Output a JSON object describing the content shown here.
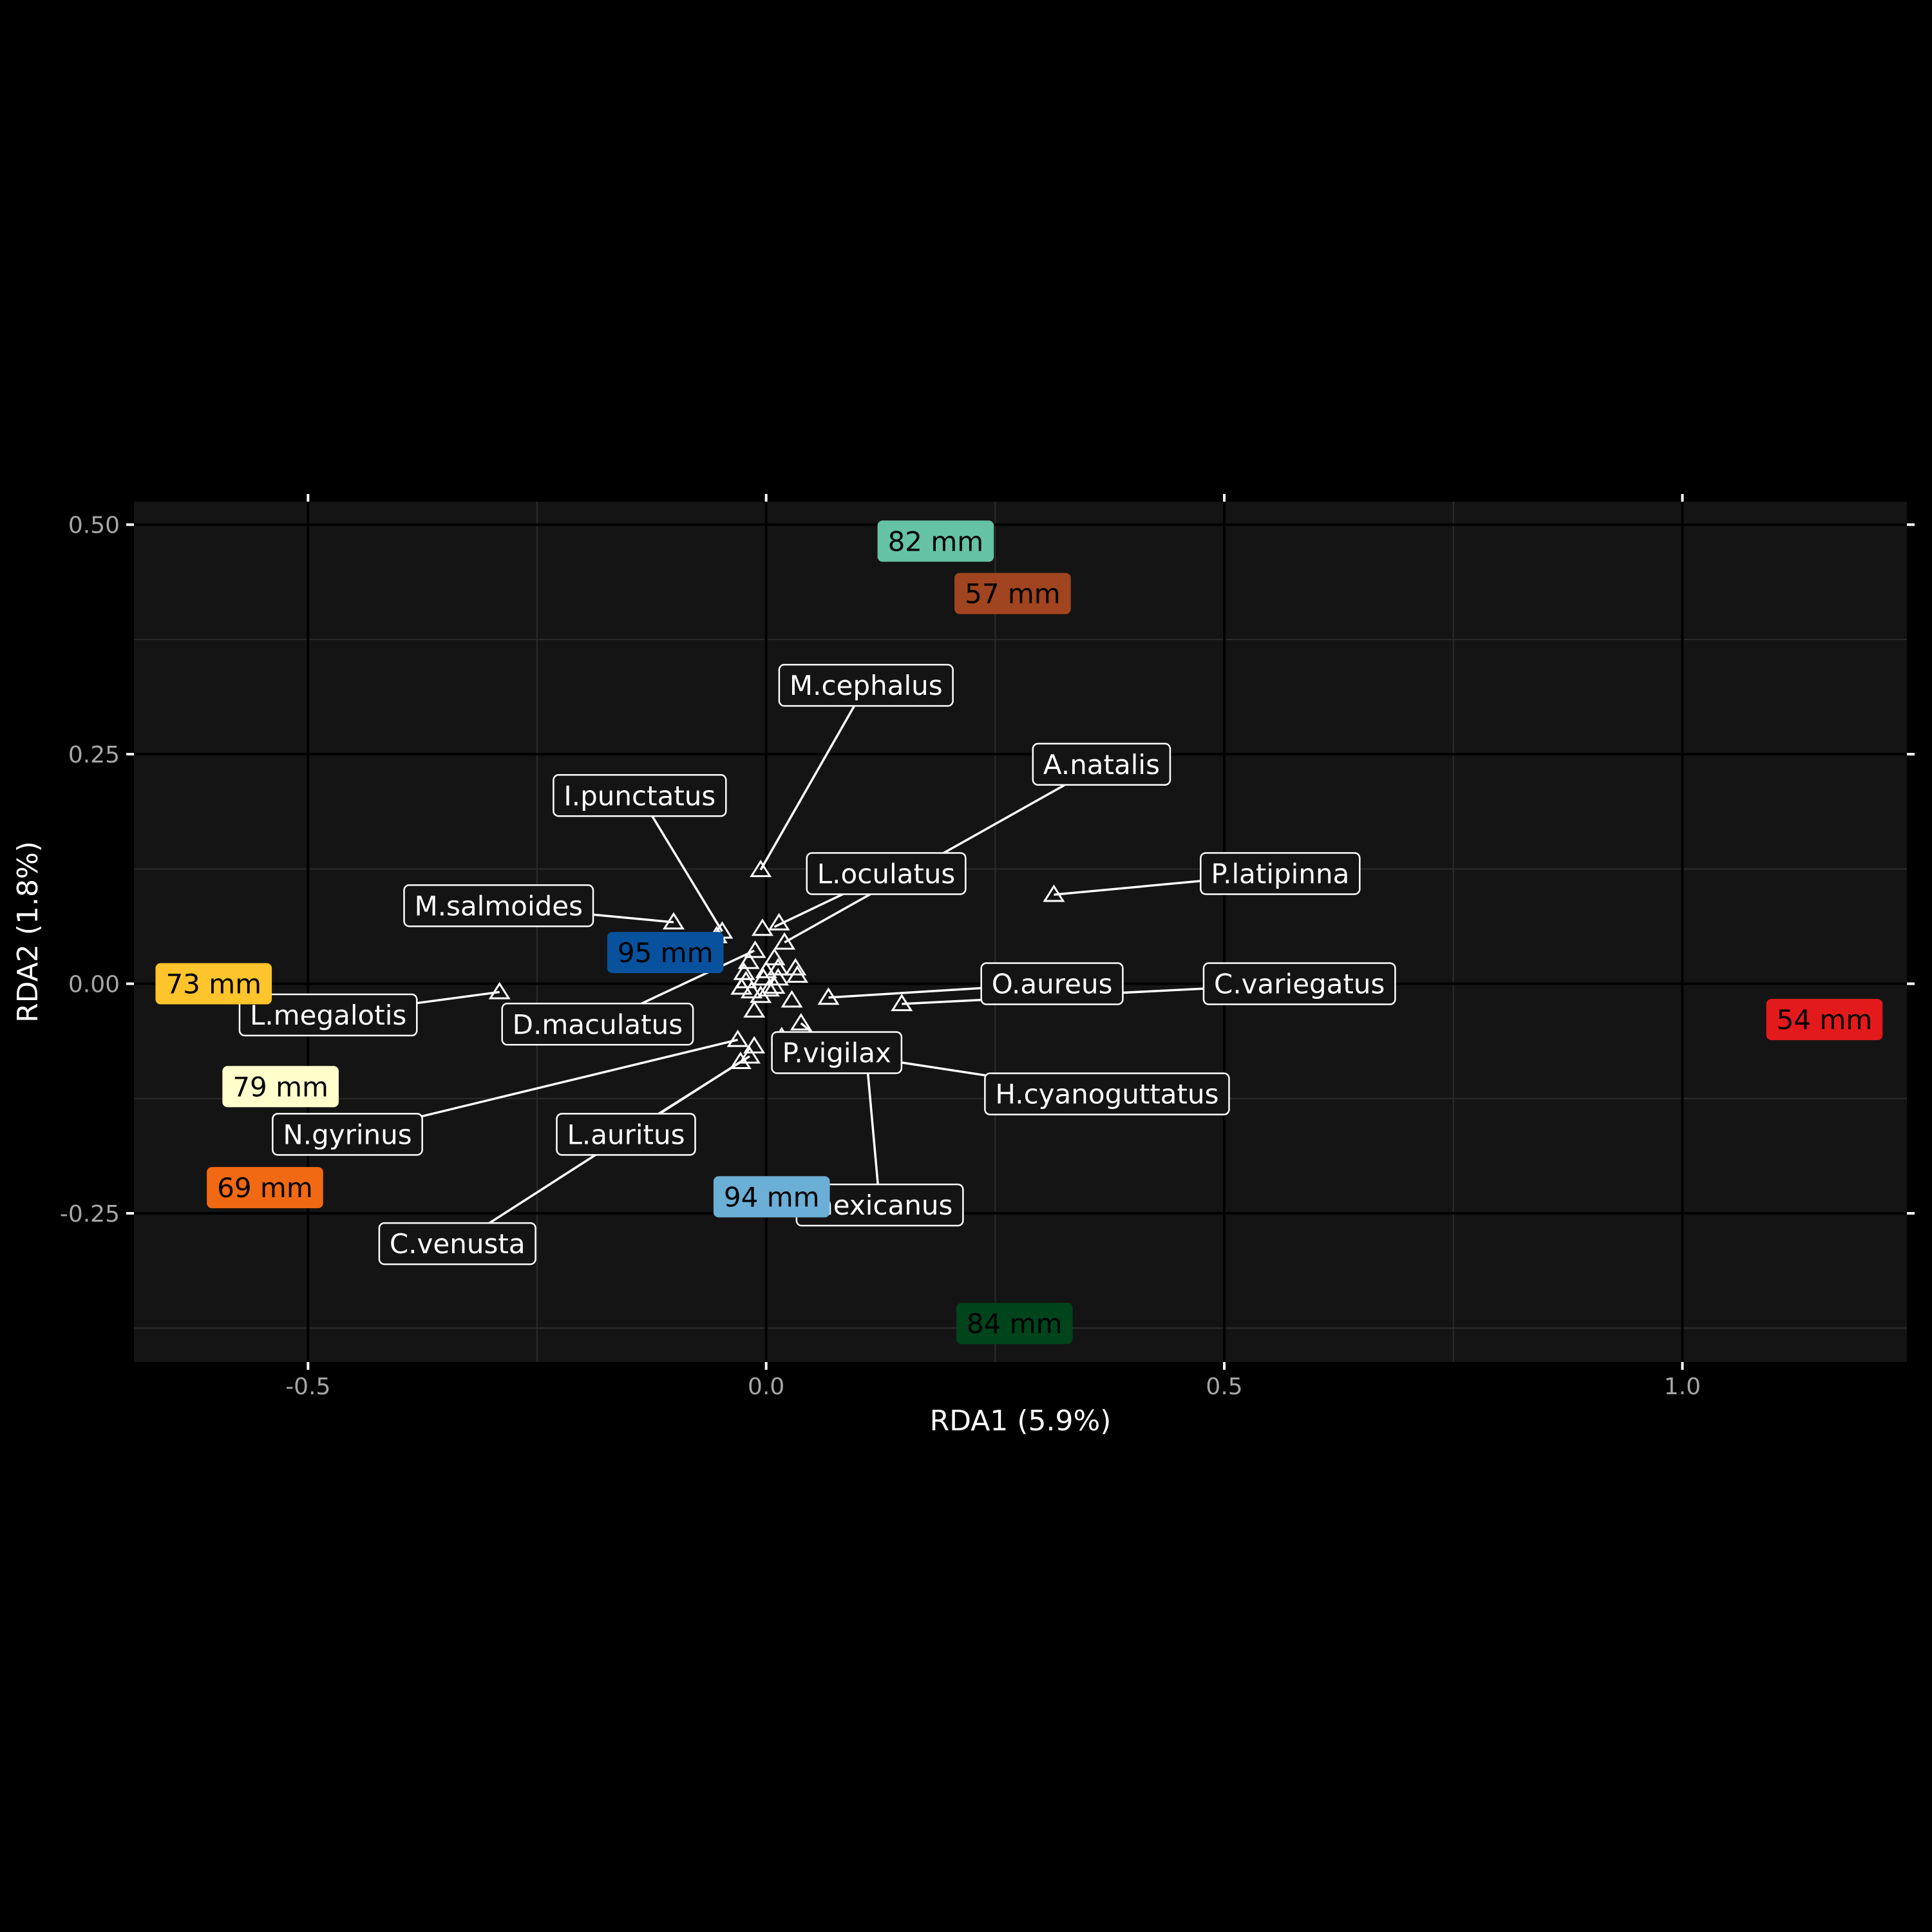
{
  "chart_data": {
    "type": "scatter",
    "title": "",
    "xlabel": "RDA1 (5.9%)",
    "ylabel": "RDA2 (1.8%)",
    "xlim": [
      -0.69,
      1.245
    ],
    "ylim": [
      -0.412,
      0.525
    ],
    "x_ticks": [
      -0.5,
      0.0,
      0.5,
      1.0
    ],
    "y_ticks": [
      -0.25,
      0.0,
      0.25,
      0.5
    ],
    "x_tick_labels": [
      "-0.5",
      "0.0",
      "0.5",
      "1.0"
    ],
    "y_tick_labels": [
      "-0.25",
      "0.00",
      "0.25",
      "0.50"
    ],
    "grid": true,
    "marker": "open-triangle",
    "points": [
      {
        "x": -0.006,
        "y": 0.124
      },
      {
        "x": -0.101,
        "y": 0.067
      },
      {
        "x": -0.048,
        "y": 0.057
      },
      {
        "x": -0.054,
        "y": 0.052
      },
      {
        "x": -0.004,
        "y": 0.06
      },
      {
        "x": 0.014,
        "y": 0.066
      },
      {
        "x": 0.02,
        "y": 0.045
      },
      {
        "x": 0.314,
        "y": 0.097
      },
      {
        "x": -0.291,
        "y": -0.009
      },
      {
        "x": 0.068,
        "y": -0.015
      },
      {
        "x": 0.148,
        "y": -0.022
      },
      {
        "x": -0.012,
        "y": 0.036
      },
      {
        "x": -0.019,
        "y": 0.024
      },
      {
        "x": 0.009,
        "y": 0.028
      },
      {
        "x": -0.024,
        "y": 0.012
      },
      {
        "x": 0.0,
        "y": 0.014
      },
      {
        "x": 0.013,
        "y": 0.017
      },
      {
        "x": 0.032,
        "y": 0.017
      },
      {
        "x": 0.034,
        "y": 0.009
      },
      {
        "x": -0.022,
        "y": 0.003
      },
      {
        "x": -0.003,
        "y": 0.006
      },
      {
        "x": 0.013,
        "y": 0.006
      },
      {
        "x": -0.027,
        "y": -0.004
      },
      {
        "x": -0.016,
        "y": -0.008
      },
      {
        "x": 0.003,
        "y": -0.006
      },
      {
        "x": 0.009,
        "y": -0.003
      },
      {
        "x": -0.006,
        "y": -0.013
      },
      {
        "x": 0.028,
        "y": -0.018
      },
      {
        "x": -0.013,
        "y": -0.029
      },
      {
        "x": 0.038,
        "y": -0.043
      },
      {
        "x": -0.031,
        "y": -0.061
      },
      {
        "x": -0.013,
        "y": -0.068
      },
      {
        "x": -0.018,
        "y": -0.079
      },
      {
        "x": -0.028,
        "y": -0.085
      },
      {
        "x": 0.017,
        "y": -0.058
      }
    ],
    "labels": [
      {
        "text": "M.cephalus",
        "x": 0.109,
        "y": 0.325,
        "tx": -0.006,
        "ty": 0.124
      },
      {
        "text": "I.punctatus",
        "x": -0.138,
        "y": 0.205,
        "tx": -0.048,
        "ty": 0.057
      },
      {
        "text": "A.natalis",
        "x": 0.366,
        "y": 0.239,
        "tx": 0.02,
        "ty": 0.045
      },
      {
        "text": "L.oculatus",
        "x": 0.131,
        "y": 0.12,
        "tx": 0.009,
        "ty": 0.062
      },
      {
        "text": "P.latipinna",
        "x": 0.561,
        "y": 0.12,
        "tx": 0.314,
        "ty": 0.097
      },
      {
        "text": "M.salmoides",
        "x": -0.292,
        "y": 0.085,
        "tx": -0.101,
        "ty": 0.067
      },
      {
        "text": "O.aureus",
        "x": 0.312,
        "y": 0.0,
        "tx": 0.068,
        "ty": -0.015
      },
      {
        "text": "C.variegatus",
        "x": 0.582,
        "y": 0.0,
        "tx": 0.148,
        "ty": -0.022
      },
      {
        "text": "L.megalotis",
        "x": -0.478,
        "y": -0.034,
        "tx": -0.291,
        "ty": -0.009
      },
      {
        "text": "D.maculatus",
        "x": -0.184,
        "y": -0.044,
        "tx": -0.013,
        "ty": 0.036
      },
      {
        "text": "P.vigilax",
        "x": 0.077,
        "y": -0.075,
        "tx": 0.038,
        "ty": -0.043
      },
      {
        "text": "H.cyanoguttatus",
        "x": 0.372,
        "y": -0.12,
        "tx": 0.077,
        "ty": -0.075
      },
      {
        "text": "N.gyrinus",
        "x": -0.457,
        "y": -0.164,
        "tx": -0.031,
        "ty": -0.061
      },
      {
        "text": "L.auritus",
        "x": -0.153,
        "y": -0.164,
        "tx": -0.018,
        "ty": -0.079
      },
      {
        "text": "mexicanus",
        "x": 0.124,
        "y": -0.241,
        "tx": 0.109,
        "ty": -0.075
      },
      {
        "text": "C.venusta",
        "x": -0.337,
        "y": -0.283,
        "tx": -0.028,
        "ty": -0.085
      }
    ],
    "colored_labels": [
      {
        "text": "82 mm",
        "x": 0.185,
        "y": 0.482,
        "color": "#66c2a5",
        "text_color": "#000000"
      },
      {
        "text": "57 mm",
        "x": 0.269,
        "y": 0.425,
        "color": "#a0451f",
        "text_color": "#000000"
      },
      {
        "text": "95 mm",
        "x": -0.11,
        "y": 0.034,
        "color": "#08519c",
        "text_color": "#000000"
      },
      {
        "text": "73 mm",
        "x": -0.603,
        "y": 0.0,
        "color": "#fec42c",
        "text_color": "#000000"
      },
      {
        "text": "54 mm",
        "x": 1.155,
        "y": -0.039,
        "color": "#e31a1c",
        "text_color": "#000000"
      },
      {
        "text": "79 mm",
        "x": -0.53,
        "y": -0.112,
        "color": "#ffffcc",
        "text_color": "#000000"
      },
      {
        "text": "69 mm",
        "x": -0.547,
        "y": -0.222,
        "color": "#f16913",
        "text_color": "#000000"
      },
      {
        "text": "94 mm",
        "x": 0.006,
        "y": -0.232,
        "color": "#6baed6",
        "text_color": "#000000"
      },
      {
        "text": "84 mm",
        "x": 0.271,
        "y": -0.37,
        "color": "#00441b",
        "text_color": "#000000"
      }
    ]
  },
  "colors": {
    "background": "#000000",
    "panel": "#141414",
    "grid_major": "#000000",
    "grid_minor": "#2b2b2b",
    "foreground": "#ffffff",
    "tick_text": "#a6a6a6"
  }
}
